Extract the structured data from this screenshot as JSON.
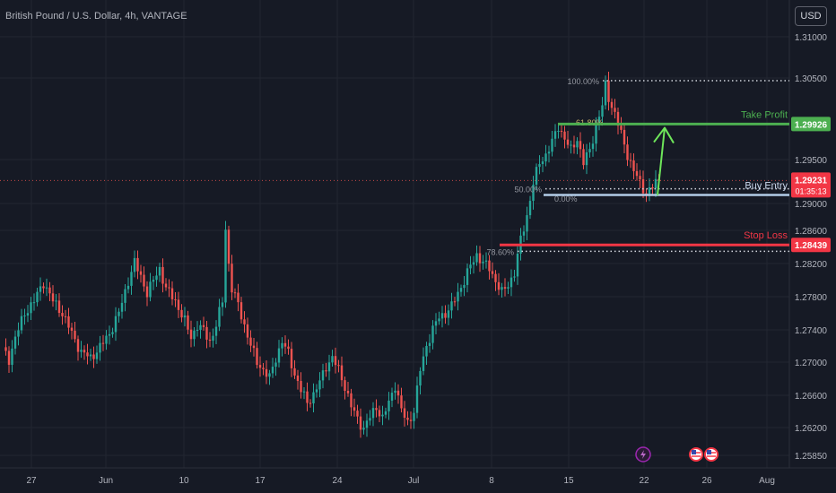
{
  "header": {
    "symbol_title": "British Pound / U.S. Dollar, 4h, VANTAGE",
    "currency_button": "USD"
  },
  "colors": {
    "background": "#161a25",
    "grid": "#222631",
    "up_candle": "#26a69a",
    "down_candle": "#ef5350",
    "take_profit": "#4caf50",
    "stop_loss": "#f23645",
    "buy_entry": "#b3cde8",
    "arrow": "#6ee65a"
  },
  "chart_data": {
    "type": "candlestick",
    "y_ticks": [
      "1.31000",
      "1.30500",
      "1.29500",
      "1.29000",
      "1.28600",
      "1.28200",
      "1.27800",
      "1.27400",
      "1.27000",
      "1.26600",
      "1.26200",
      "1.25850"
    ],
    "x_ticks": [
      "27",
      "Jun",
      "10",
      "17",
      "24",
      "Jul",
      "8",
      "15",
      "22",
      "26",
      "Aug"
    ],
    "ylim": [
      1.2574,
      1.3128
    ],
    "grid": true,
    "fib_levels": [
      {
        "label": "100.00%",
        "price": 1.3046
      },
      {
        "label": "61.80%",
        "price": 1.2995
      },
      {
        "label": "50.00%",
        "price": 1.2913
      },
      {
        "label": "0.00%",
        "price": 1.2905
      },
      {
        "label": "78.60%",
        "price": 1.2836
      }
    ],
    "levels": [
      {
        "name": "Take Profit",
        "label_text": "Take Profit",
        "price": 1.29926,
        "price_label": "1.29926"
      },
      {
        "name": "Buy Entry",
        "label_text": "Buy Entry",
        "price": 1.29054
      },
      {
        "name": "Stop Loss",
        "label_text": "Stop Loss",
        "price": 1.28439,
        "price_label": "1.28439"
      }
    ],
    "current_price": {
      "price": 1.29231,
      "price_label": "1.29231",
      "countdown": "01:35:13"
    },
    "price_path": [
      [
        0,
        1.2715
      ],
      [
        2,
        1.2703
      ],
      [
        4,
        1.273
      ],
      [
        7,
        1.276
      ],
      [
        10,
        1.2775
      ],
      [
        13,
        1.2798
      ],
      [
        16,
        1.2775
      ],
      [
        19,
        1.276
      ],
      [
        22,
        1.2735
      ],
      [
        25,
        1.2712
      ],
      [
        28,
        1.2705
      ],
      [
        31,
        1.2718
      ],
      [
        34,
        1.2735
      ],
      [
        37,
        1.276
      ],
      [
        40,
        1.28
      ],
      [
        42,
        1.2822
      ],
      [
        44,
        1.2805
      ],
      [
        46,
        1.2785
      ],
      [
        48,
        1.28
      ],
      [
        50,
        1.2815
      ],
      [
        52,
        1.279
      ],
      [
        55,
        1.2775
      ],
      [
        58,
        1.275
      ],
      [
        60,
        1.273
      ],
      [
        62,
        1.2745
      ],
      [
        64,
        1.2738
      ],
      [
        66,
        1.2725
      ],
      [
        68,
        1.2745
      ],
      [
        70,
        1.2775
      ],
      [
        71,
        1.2865
      ],
      [
        72,
        1.282
      ],
      [
        73,
        1.279
      ],
      [
        75,
        1.277
      ],
      [
        77,
        1.2745
      ],
      [
        79,
        1.272
      ],
      [
        81,
        1.27
      ],
      [
        83,
        1.269
      ],
      [
        85,
        1.268
      ],
      [
        87,
        1.2705
      ],
      [
        89,
        1.2725
      ],
      [
        91,
        1.271
      ],
      [
        93,
        1.2685
      ],
      [
        95,
        1.2665
      ],
      [
        97,
        1.265
      ],
      [
        99,
        1.266
      ],
      [
        101,
        1.2675
      ],
      [
        103,
        1.2695
      ],
      [
        105,
        1.2705
      ],
      [
        107,
        1.269
      ],
      [
        109,
        1.267
      ],
      [
        111,
        1.2645
      ],
      [
        113,
        1.263
      ],
      [
        115,
        1.2618
      ],
      [
        117,
        1.2632
      ],
      [
        119,
        1.2645
      ],
      [
        121,
        1.263
      ],
      [
        123,
        1.265
      ],
      [
        125,
        1.2672
      ],
      [
        127,
        1.264
      ],
      [
        129,
        1.2625
      ],
      [
        131,
        1.264
      ],
      [
        133,
        1.269
      ],
      [
        135,
        1.272
      ],
      [
        137,
        1.274
      ],
      [
        139,
        1.2755
      ],
      [
        141,
        1.276
      ],
      [
        143,
        1.2768
      ],
      [
        145,
        1.2785
      ],
      [
        147,
        1.28
      ],
      [
        149,
        1.2818
      ],
      [
        151,
        1.2832
      ],
      [
        153,
        1.2822
      ],
      [
        155,
        1.2815
      ],
      [
        157,
        1.28
      ],
      [
        159,
        1.2785
      ],
      [
        161,
        1.2795
      ],
      [
        163,
        1.281
      ],
      [
        165,
        1.285
      ],
      [
        167,
        1.288
      ],
      [
        169,
        1.292
      ],
      [
        171,
        1.2945
      ],
      [
        173,
        1.2955
      ],
      [
        175,
        1.297
      ],
      [
        177,
        1.299
      ],
      [
        179,
        1.2975
      ],
      [
        181,
        1.296
      ],
      [
        183,
        1.2975
      ],
      [
        185,
        1.2945
      ],
      [
        187,
        1.296
      ],
      [
        189,
        1.299
      ],
      [
        191,
        1.3015
      ],
      [
        192,
        1.304
      ],
      [
        193,
        1.3025
      ],
      [
        195,
        1.3005
      ],
      [
        197,
        1.298
      ],
      [
        199,
        1.2955
      ],
      [
        201,
        1.2935
      ],
      [
        203,
        1.292
      ],
      [
        205,
        1.2908
      ],
      [
        207,
        1.2915
      ],
      [
        209,
        1.2925
      ]
    ],
    "event_icons": [
      "lightning-event",
      "us-flag-event",
      "us-flag-event"
    ]
  }
}
